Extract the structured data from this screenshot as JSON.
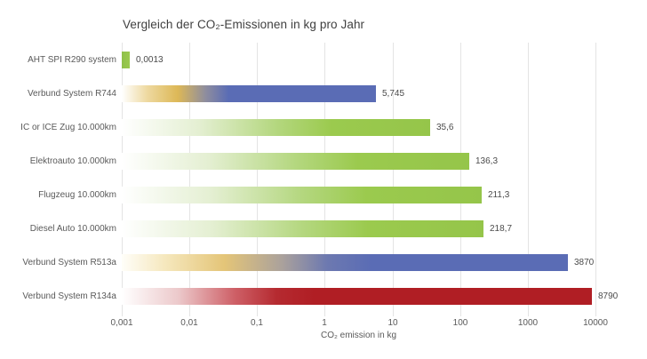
{
  "title": "Vergleich der CO₂-Emissionen in kg pro Jahr",
  "chart_data": {
    "type": "bar",
    "orientation": "horizontal",
    "scale": "log10",
    "title": "Vergleich der CO₂-Emissionen in kg pro Jahr",
    "xlabel": "CO₂ emission in kg",
    "xlim": [
      0.001,
      10000
    ],
    "grid": true,
    "categories": [
      "AHT SPI R290 system",
      "Verbund System R744",
      "IC or ICE Zug 10.000km",
      "Elektroauto 10.000km",
      "Flugzeug 10.000km",
      "Diesel Auto 10.000km",
      "Verbund System R513a",
      "Verbund System R134a"
    ],
    "values": [
      0.0013,
      5.745,
      35.6,
      136.3,
      211.3,
      218.7,
      3870,
      8790
    ],
    "value_labels": [
      "0,0013",
      "5,745",
      "35,6",
      "136,3",
      "211,3",
      "218,7",
      "3870",
      "8790"
    ],
    "tick_values": [
      0.001,
      0.01,
      0.1,
      1,
      10,
      100,
      1000,
      10000
    ],
    "tick_labels": [
      "0,001",
      "0,01",
      "0,1",
      "1",
      "10",
      "100",
      "1000",
      "10000"
    ],
    "bar_gradients": [
      [
        [
          "#8fc04a",
          0
        ],
        [
          "#9bca4e",
          100
        ]
      ],
      [
        [
          "#ffffff",
          0
        ],
        [
          "#eed9a0",
          10
        ],
        [
          "#ddb857",
          22
        ],
        [
          "#8e8d9e",
          33
        ],
        [
          "#5a6cb5",
          42
        ],
        [
          "#5a6cb5",
          100
        ]
      ],
      [
        [
          "#ffffff",
          0
        ],
        [
          "#e4efd2",
          25
        ],
        [
          "#b4d77f",
          50
        ],
        [
          "#9bca4e",
          68
        ],
        [
          "#95c54a",
          100
        ]
      ],
      [
        [
          "#ffffff",
          0
        ],
        [
          "#e4efd2",
          25
        ],
        [
          "#b4d77f",
          50
        ],
        [
          "#9bca4e",
          68
        ],
        [
          "#95c54a",
          100
        ]
      ],
      [
        [
          "#ffffff",
          0
        ],
        [
          "#e4efd2",
          25
        ],
        [
          "#b4d77f",
          50
        ],
        [
          "#9bca4e",
          68
        ],
        [
          "#95c54a",
          100
        ]
      ],
      [
        [
          "#ffffff",
          0
        ],
        [
          "#e4efd2",
          25
        ],
        [
          "#b4d77f",
          50
        ],
        [
          "#9bca4e",
          68
        ],
        [
          "#95c54a",
          100
        ]
      ],
      [
        [
          "#fffef9",
          0
        ],
        [
          "#f5e7bc",
          10
        ],
        [
          "#e4c578",
          23
        ],
        [
          "#aaa19c",
          36
        ],
        [
          "#6d79b0",
          46
        ],
        [
          "#5a6cb5",
          56
        ],
        [
          "#5a6cb5",
          100
        ]
      ],
      [
        [
          "#ffffff",
          0
        ],
        [
          "#ecc9cb",
          12
        ],
        [
          "#ce6067",
          24
        ],
        [
          "#b52a30",
          33
        ],
        [
          "#b01e24",
          41
        ],
        [
          "#b01e24",
          100
        ]
      ]
    ]
  },
  "colors": {
    "green": "#9bca4e",
    "blue": "#5a6cb5",
    "gold": "#e4c578",
    "dark_red": "#b01e24",
    "gridline": "#e4e4e4",
    "title_text": "#404040",
    "label_text": "#595959",
    "value_text": "#4b4b4b",
    "background": "#ffffff"
  }
}
